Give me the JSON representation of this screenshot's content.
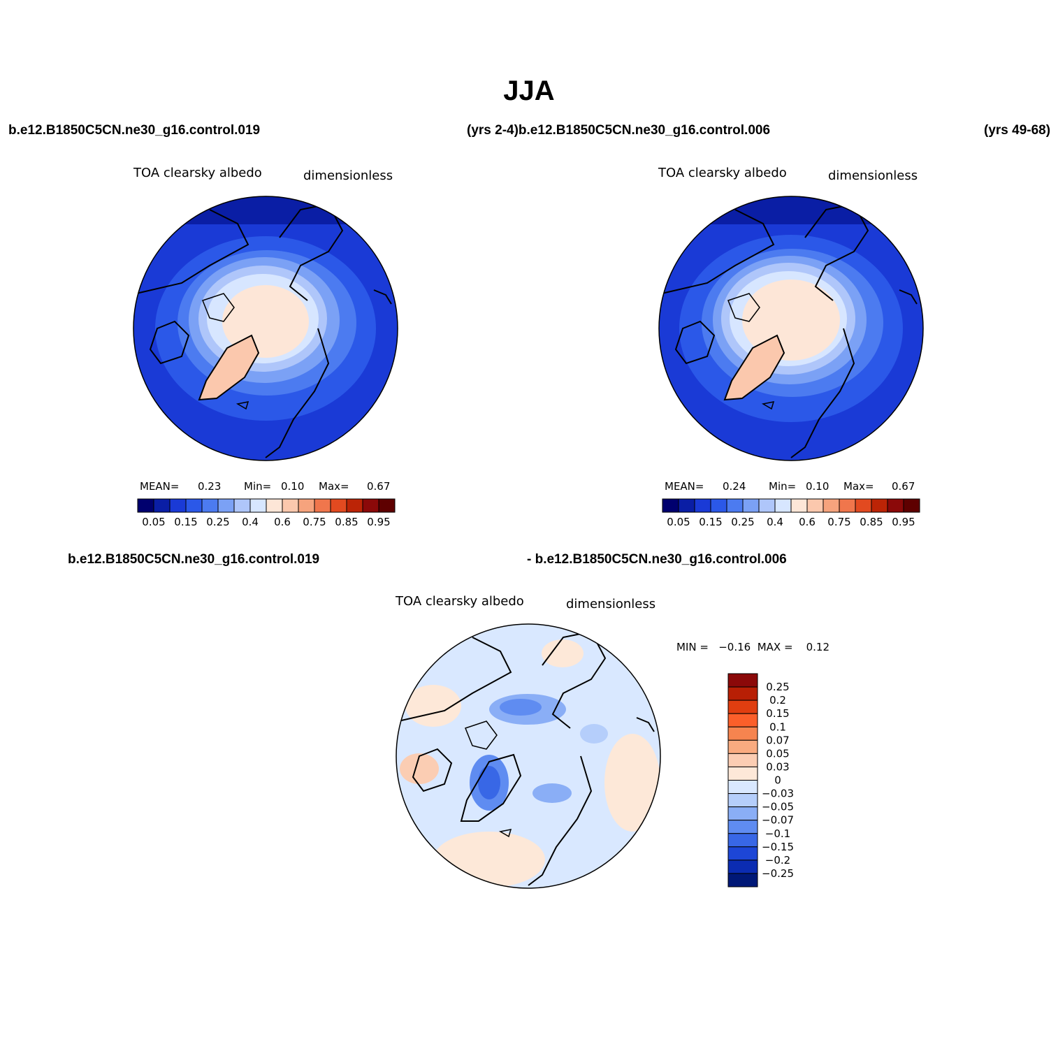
{
  "title": "JJA",
  "top_left_case": "b.e12.B1850C5CN.ne30_g16.control.019",
  "top_mid_case": "(yrs 2-4)b.e12.B1850C5CN.ne30_g16.control.006",
  "top_right_case": "(yrs 49-68)",
  "diff_case_a": "b.e12.B1850C5CN.ne30_g16.control.019",
  "diff_case_b": "- b.e12.B1850C5CN.ne30_g16.control.006",
  "panels": [
    {
      "variable": "TOA clearsky albedo",
      "units": "dimensionless",
      "mean_label": "MEAN=",
      "mean": "0.23",
      "min_label": "Min=",
      "min": "0.10",
      "max_label": "Max=",
      "max": "0.67"
    },
    {
      "variable": "TOA clearsky albedo",
      "units": "dimensionless",
      "mean_label": "MEAN=",
      "mean": "0.24",
      "min_label": "Min=",
      "min": "0.10",
      "max_label": "Max=",
      "max": "0.67"
    },
    {
      "variable": "TOA clearsky albedo",
      "units": "dimensionless",
      "minmax": "MIN =   −0.16  MAX =    0.12"
    }
  ],
  "abs_colorbar": {
    "colors": [
      "#00006e",
      "#0a1ea5",
      "#1a3ad6",
      "#2b58e8",
      "#4c7bf0",
      "#7ba1f5",
      "#afc6fa",
      "#d7e6ff",
      "#fde6d7",
      "#fbc8ad",
      "#f6a37d",
      "#f0764c",
      "#e24a20",
      "#bc2406",
      "#8b0909",
      "#5e0000"
    ],
    "labels": [
      "0.05",
      "0.15",
      "0.25",
      "0.4",
      "0.6",
      "0.75",
      "0.85",
      "0.95"
    ]
  },
  "diff_colorbar": {
    "colors": [
      "#8b0909",
      "#b81f05",
      "#e03e10",
      "#fb5f2a",
      "#f6844f",
      "#f9ab80",
      "#fbcdb3",
      "#fde8d8",
      "#d9e8ff",
      "#b5cefb",
      "#8aaef6",
      "#5f8cf1",
      "#3867e6",
      "#1d46d6",
      "#0b2cb2",
      "#001877"
    ],
    "labels": [
      "0.25",
      "0.2",
      "0.15",
      "0.1",
      "0.07",
      "0.05",
      "0.03",
      "0",
      "−0.03",
      "−0.05",
      "−0.07",
      "−0.1",
      "−0.15",
      "−0.2",
      "−0.25"
    ]
  }
}
